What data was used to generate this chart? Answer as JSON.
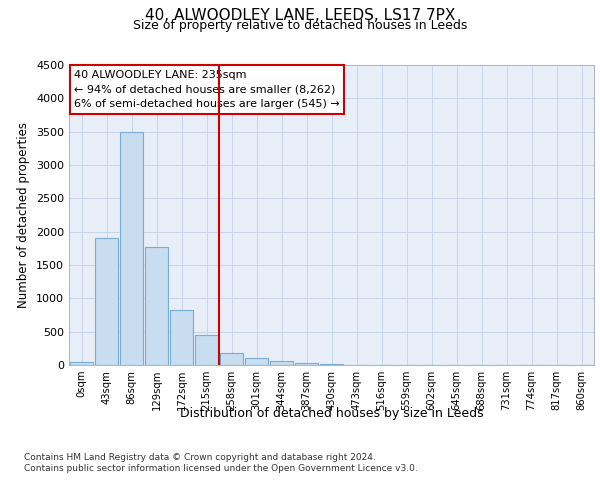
{
  "title1": "40, ALWOODLEY LANE, LEEDS, LS17 7PX",
  "title2": "Size of property relative to detached houses in Leeds",
  "xlabel": "Distribution of detached houses by size in Leeds",
  "ylabel": "Number of detached properties",
  "footnote1": "Contains HM Land Registry data © Crown copyright and database right 2024.",
  "footnote2": "Contains public sector information licensed under the Open Government Licence v3.0.",
  "bar_color": "#c8ddf0",
  "bar_edge_color": "#7aadd4",
  "vline_color": "#cc0000",
  "annotation_box_color": "#cc0000",
  "annotation_line1": "40 ALWOODLEY LANE: 235sqm",
  "annotation_line2": "← 94% of detached houses are smaller (8,262)",
  "annotation_line3": "6% of semi-detached houses are larger (545) →",
  "bins": [
    "0sqm",
    "43sqm",
    "86sqm",
    "129sqm",
    "172sqm",
    "215sqm",
    "258sqm",
    "301sqm",
    "344sqm",
    "387sqm",
    "430sqm",
    "473sqm",
    "516sqm",
    "559sqm",
    "602sqm",
    "645sqm",
    "688sqm",
    "731sqm",
    "774sqm",
    "817sqm",
    "860sqm"
  ],
  "values": [
    50,
    1910,
    3500,
    1775,
    825,
    450,
    175,
    100,
    65,
    35,
    20,
    5,
    2,
    1,
    0,
    0,
    0,
    0,
    0,
    0,
    0
  ],
  "ylim": [
    0,
    4500
  ],
  "yticks": [
    0,
    500,
    1000,
    1500,
    2000,
    2500,
    3000,
    3500,
    4000,
    4500
  ],
  "grid_color": "#c8d4e8",
  "bg_color": "#e8eef8",
  "fig_bg": "#ffffff",
  "vline_bin_index": 6
}
